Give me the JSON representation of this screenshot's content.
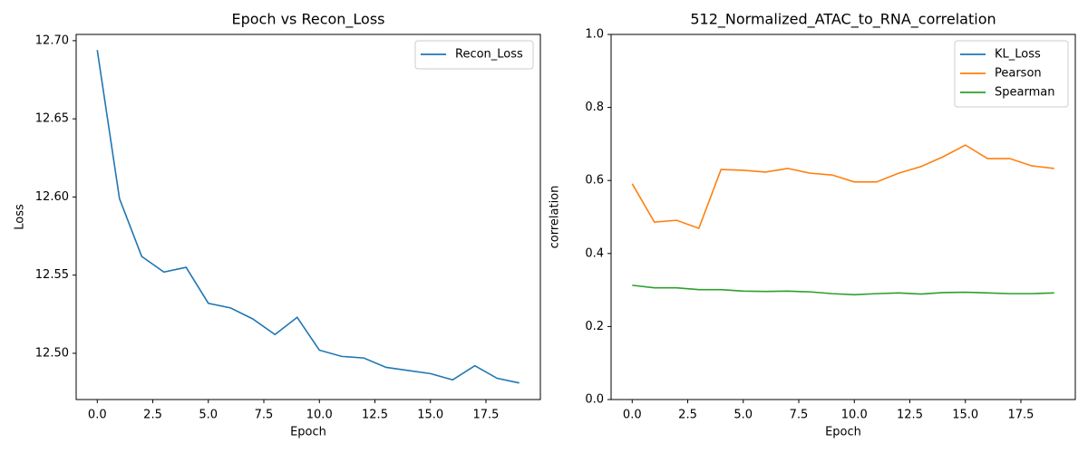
{
  "chart_data": [
    {
      "type": "line",
      "title": "Epoch vs Recon_Loss",
      "xlabel": "Epoch",
      "ylabel": "Loss",
      "x": [
        0,
        1,
        2,
        3,
        4,
        5,
        6,
        7,
        8,
        9,
        10,
        11,
        12,
        13,
        14,
        15,
        16,
        17,
        18,
        19
      ],
      "series": [
        {
          "name": "Recon_Loss",
          "color": "#1f77b4",
          "values": [
            12.694,
            12.599,
            12.562,
            12.552,
            12.555,
            12.532,
            12.529,
            12.522,
            12.512,
            12.523,
            12.502,
            12.498,
            12.497,
            12.491,
            12.489,
            12.487,
            12.483,
            12.492,
            12.484,
            12.481
          ]
        }
      ],
      "xlim": [
        -0.95,
        19.95
      ],
      "ylim": [
        12.4704,
        12.704
      ],
      "xticks": [
        {
          "value": 0,
          "label": "0.0"
        },
        2.5,
        {
          "value": 5,
          "label": "5.0"
        },
        7.5,
        {
          "value": 10,
          "label": "10.0"
        },
        12.5,
        {
          "value": 15,
          "label": "15.0"
        },
        17.5
      ],
      "yticks": [
        {
          "value": 12.5,
          "label": "12.50"
        },
        12.55,
        {
          "value": 12.6,
          "label": "12.60"
        },
        12.65,
        {
          "value": 12.7,
          "label": "12.70"
        }
      ],
      "legend": "upper right"
    },
    {
      "type": "line",
      "title": "512_Normalized_ATAC_to_RNA_correlation",
      "xlabel": "Epoch",
      "ylabel": "correlation",
      "x": [
        0,
        1,
        2,
        3,
        4,
        5,
        6,
        7,
        8,
        9,
        10,
        11,
        12,
        13,
        14,
        15,
        16,
        17,
        18,
        19
      ],
      "series": [
        {
          "name": "KL_Loss",
          "color": "#1f77b4",
          "values": [
            null,
            null,
            null,
            null,
            null,
            null,
            null,
            null,
            null,
            null,
            null,
            null,
            null,
            null,
            null,
            null,
            null,
            null,
            null,
            null
          ]
        },
        {
          "name": "Pearson",
          "color": "#ff7f0e",
          "values": [
            0.591,
            0.486,
            0.491,
            0.469,
            0.63,
            0.628,
            0.623,
            0.633,
            0.62,
            0.615,
            0.596,
            0.596,
            0.62,
            0.638,
            0.665,
            0.697,
            0.66,
            0.66,
            0.64,
            0.633
          ]
        },
        {
          "name": "Spearman",
          "color": "#2ca02c",
          "values": [
            0.313,
            0.306,
            0.306,
            0.301,
            0.301,
            0.297,
            0.296,
            0.297,
            0.295,
            0.29,
            0.287,
            0.29,
            0.292,
            0.289,
            0.293,
            0.294,
            0.292,
            0.29,
            0.29,
            0.292
          ]
        }
      ],
      "xlim": [
        -0.95,
        19.95
      ],
      "ylim": [
        0,
        1
      ],
      "xticks": [
        {
          "value": 0,
          "label": "0.0"
        },
        2.5,
        {
          "value": 5,
          "label": "5.0"
        },
        7.5,
        {
          "value": 10,
          "label": "10.0"
        },
        12.5,
        {
          "value": 15,
          "label": "15.0"
        },
        17.5
      ],
      "yticks": [
        {
          "value": 0,
          "label": "0.0"
        },
        0.2,
        0.4,
        0.6,
        0.8,
        {
          "value": 1,
          "label": "1.0"
        }
      ],
      "legend": "upper right"
    }
  ]
}
